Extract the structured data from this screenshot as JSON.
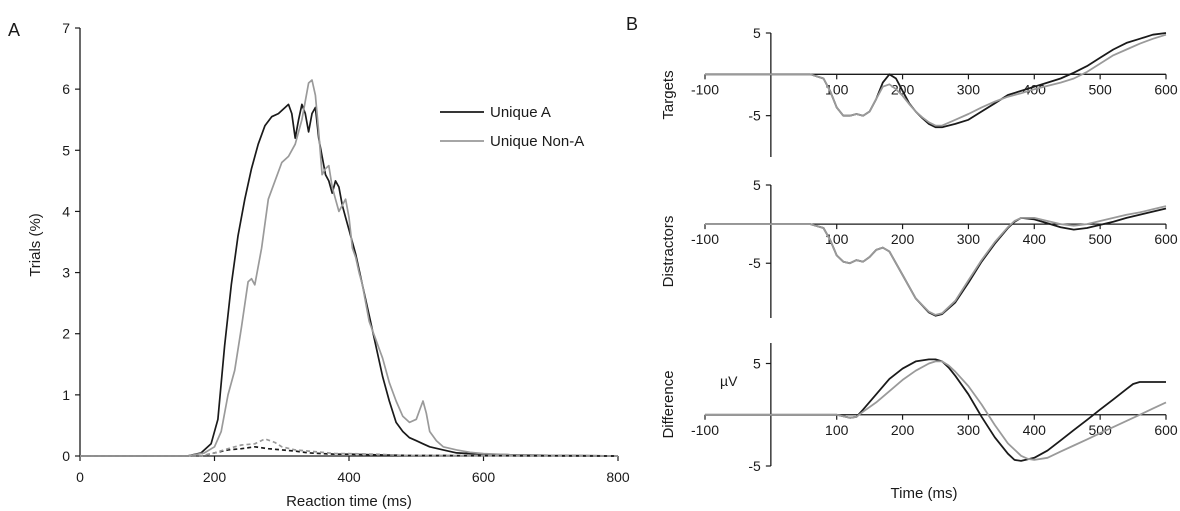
{
  "chart_data": [
    {
      "panel_label": "A",
      "type": "line",
      "xlabel": "Reaction time (ms)",
      "ylabel": "Trials (%)",
      "xlim": [
        0,
        800
      ],
      "ylim": [
        0,
        7
      ],
      "xticks": [
        "0",
        "200",
        "400",
        "600",
        "800"
      ],
      "yticks": [
        "0",
        "1",
        "2",
        "3",
        "4",
        "5",
        "6",
        "7"
      ],
      "legend_position": "top-right",
      "series": [
        {
          "name": "Unique A",
          "color": "#1a1a1a",
          "style": "solid",
          "x": [
            0,
            160,
            180,
            195,
            205,
            215,
            225,
            235,
            245,
            255,
            265,
            275,
            285,
            295,
            300,
            305,
            310,
            315,
            320,
            325,
            330,
            335,
            340,
            345,
            350,
            355,
            360,
            365,
            370,
            375,
            380,
            385,
            390,
            395,
            400,
            410,
            420,
            430,
            440,
            450,
            460,
            470,
            480,
            490,
            500,
            510,
            520,
            540,
            560,
            580,
            600,
            640,
            700,
            800
          ],
          "y": [
            0,
            0,
            0.05,
            0.2,
            0.6,
            1.8,
            2.8,
            3.6,
            4.2,
            4.7,
            5.1,
            5.4,
            5.55,
            5.6,
            5.65,
            5.7,
            5.75,
            5.6,
            5.2,
            5.5,
            5.75,
            5.6,
            5.3,
            5.6,
            5.7,
            5.2,
            4.9,
            4.6,
            4.5,
            4.3,
            4.5,
            4.4,
            4.1,
            3.9,
            3.7,
            3.3,
            2.8,
            2.3,
            1.8,
            1.3,
            0.9,
            0.55,
            0.4,
            0.3,
            0.25,
            0.2,
            0.15,
            0.1,
            0.05,
            0.04,
            0.03,
            0.02,
            0.01,
            0
          ]
        },
        {
          "name": "Unique Non-A",
          "color": "#9a9a9a",
          "style": "solid",
          "x": [
            0,
            160,
            185,
            200,
            210,
            220,
            230,
            240,
            250,
            255,
            260,
            270,
            280,
            290,
            300,
            310,
            320,
            330,
            340,
            345,
            350,
            355,
            360,
            365,
            370,
            375,
            380,
            385,
            390,
            395,
            400,
            405,
            410,
            415,
            420,
            430,
            440,
            450,
            460,
            470,
            480,
            490,
            500,
            505,
            510,
            515,
            520,
            530,
            540,
            560,
            580,
            600,
            640,
            700,
            800
          ],
          "y": [
            0,
            0,
            0.05,
            0.15,
            0.4,
            1.0,
            1.4,
            2.1,
            2.85,
            2.9,
            2.8,
            3.4,
            4.2,
            4.5,
            4.8,
            4.9,
            5.1,
            5.5,
            6.1,
            6.15,
            5.9,
            5.3,
            4.6,
            4.7,
            4.75,
            4.4,
            4.2,
            4.0,
            4.1,
            4.2,
            3.9,
            3.4,
            3.25,
            3.0,
            2.8,
            2.2,
            1.9,
            1.6,
            1.2,
            0.9,
            0.65,
            0.55,
            0.6,
            0.75,
            0.9,
            0.7,
            0.4,
            0.25,
            0.15,
            0.1,
            0.06,
            0.04,
            0.02,
            0.01,
            0
          ]
        },
        {
          "color": "#1a1a1a",
          "style": "dashed",
          "x": [
            0,
            180,
            200,
            220,
            240,
            260,
            280,
            300,
            320,
            340,
            360,
            380,
            400,
            440,
            480,
            800
          ],
          "y": [
            0,
            0,
            0.05,
            0.1,
            0.12,
            0.15,
            0.12,
            0.1,
            0.08,
            0.05,
            0.04,
            0.03,
            0.03,
            0.02,
            0.01,
            0
          ]
        },
        {
          "color": "#9a9a9a",
          "style": "dashed",
          "x": [
            0,
            180,
            200,
            220,
            240,
            260,
            275,
            290,
            300,
            320,
            340,
            360,
            380,
            400,
            440,
            480,
            800
          ],
          "y": [
            0,
            0,
            0.05,
            0.12,
            0.18,
            0.2,
            0.28,
            0.22,
            0.15,
            0.1,
            0.08,
            0.06,
            0.04,
            0.04,
            0.03,
            0.01,
            0
          ]
        }
      ]
    },
    {
      "panel_label": "B",
      "type": "line",
      "xlabel": "Time (ms)",
      "unit_label": "µV",
      "xlim": [
        -100,
        600
      ],
      "xticks": [
        "-100",
        "100",
        "200",
        "300",
        "400",
        "500",
        "600"
      ],
      "subplots": [
        {
          "ylabel": "Targets",
          "ylim": [
            -10,
            5
          ],
          "yticks": [
            "5",
            "-5"
          ],
          "series": [
            {
              "color": "#1a1a1a",
              "x": [
                -100,
                0,
                60,
                80,
                90,
                100,
                110,
                120,
                130,
                140,
                150,
                160,
                170,
                180,
                190,
                200,
                210,
                220,
                230,
                240,
                250,
                260,
                280,
                300,
                320,
                340,
                360,
                380,
                400,
                420,
                440,
                460,
                480,
                500,
                520,
                540,
                560,
                580,
                600
              ],
              "y": [
                0,
                0,
                0,
                -0.5,
                -2,
                -4,
                -5,
                -5,
                -4.8,
                -5,
                -4.5,
                -3,
                -1,
                0,
                -0.5,
                -2,
                -3.5,
                -4.5,
                -5.3,
                -6,
                -6.4,
                -6.4,
                -6,
                -5.5,
                -4.5,
                -3.5,
                -2.5,
                -2,
                -1.5,
                -1,
                -0.5,
                0.2,
                1,
                2,
                3,
                3.8,
                4.3,
                4.8,
                5
              ]
            },
            {
              "color": "#9a9a9a",
              "x": [
                -100,
                0,
                60,
                80,
                90,
                100,
                110,
                120,
                130,
                140,
                150,
                160,
                170,
                180,
                190,
                200,
                210,
                220,
                230,
                240,
                250,
                260,
                280,
                300,
                320,
                340,
                360,
                380,
                400,
                420,
                440,
                460,
                480,
                500,
                520,
                540,
                560,
                580,
                600
              ],
              "y": [
                0,
                0,
                0,
                -0.5,
                -2,
                -4,
                -5,
                -5,
                -4.8,
                -5,
                -4.5,
                -3,
                -1.5,
                -1.2,
                -1.8,
                -2.6,
                -3.6,
                -4.5,
                -5.2,
                -5.8,
                -6.2,
                -6.2,
                -5.5,
                -4.8,
                -4,
                -3.3,
                -2.7,
                -2.3,
                -1.8,
                -1.4,
                -1,
                -0.5,
                0.3,
                1.3,
                2.3,
                3,
                3.7,
                4.3,
                4.8
              ]
            }
          ]
        },
        {
          "ylabel": "Distractors",
          "ylim": [
            -12,
            5
          ],
          "yticks": [
            "5",
            "-5"
          ],
          "series": [
            {
              "color": "#1a1a1a",
              "x": [
                -100,
                0,
                60,
                80,
                90,
                100,
                110,
                120,
                130,
                140,
                150,
                160,
                170,
                180,
                200,
                220,
                240,
                250,
                260,
                280,
                300,
                320,
                340,
                360,
                370,
                380,
                400,
                420,
                440,
                460,
                480,
                500,
                520,
                540,
                560,
                580,
                600
              ],
              "y": [
                0,
                0,
                0,
                -0.5,
                -2,
                -4,
                -4.8,
                -5,
                -4.6,
                -4.8,
                -4.2,
                -3.3,
                -3,
                -3.5,
                -6.5,
                -9.5,
                -11.3,
                -11.7,
                -11.5,
                -10,
                -7.5,
                -4.8,
                -2.5,
                -0.5,
                0.3,
                0.8,
                0.6,
                0.1,
                -0.4,
                -0.7,
                -0.5,
                -0.1,
                0.3,
                0.8,
                1.2,
                1.6,
                2
              ]
            },
            {
              "color": "#9a9a9a",
              "x": [
                -100,
                0,
                60,
                80,
                90,
                100,
                110,
                120,
                130,
                140,
                150,
                160,
                170,
                180,
                200,
                220,
                240,
                250,
                260,
                280,
                300,
                320,
                340,
                360,
                370,
                380,
                400,
                420,
                440,
                460,
                480,
                500,
                520,
                540,
                560,
                580,
                600
              ],
              "y": [
                0,
                0,
                0,
                -0.5,
                -2,
                -4,
                -4.8,
                -5,
                -4.6,
                -4.8,
                -4.2,
                -3.3,
                -3,
                -3.5,
                -6.5,
                -9.5,
                -11.2,
                -11.6,
                -11.4,
                -9.8,
                -7.2,
                -4.6,
                -2.3,
                -0.4,
                0.4,
                0.8,
                0.8,
                0.4,
                0,
                -0.2,
                0,
                0.4,
                0.8,
                1.2,
                1.5,
                1.9,
                2.3
              ]
            }
          ]
        },
        {
          "ylabel": "Difference",
          "ylim": [
            -5,
            7
          ],
          "yticks": [
            "5",
            "-5"
          ],
          "series": [
            {
              "color": "#1a1a1a",
              "x": [
                -100,
                0,
                60,
                100,
                120,
                130,
                140,
                160,
                180,
                200,
                220,
                240,
                250,
                260,
                270,
                280,
                300,
                320,
                340,
                360,
                370,
                380,
                400,
                420,
                440,
                460,
                480,
                500,
                520,
                540,
                550,
                560,
                580,
                600
              ],
              "y": [
                0,
                0,
                0,
                0,
                -0.3,
                -0.2,
                0.5,
                2,
                3.5,
                4.5,
                5.2,
                5.4,
                5.4,
                5.2,
                4.6,
                3.8,
                2,
                -0.2,
                -2.2,
                -3.8,
                -4.4,
                -4.5,
                -4.2,
                -3.5,
                -2.5,
                -1.5,
                -0.5,
                0.5,
                1.5,
                2.5,
                3,
                3.2,
                3.2,
                3.2
              ]
            },
            {
              "color": "#9a9a9a",
              "x": [
                -100,
                0,
                60,
                100,
                120,
                130,
                140,
                160,
                180,
                200,
                220,
                240,
                250,
                260,
                270,
                280,
                300,
                320,
                340,
                360,
                380,
                390,
                400,
                420,
                440,
                460,
                480,
                500,
                520,
                540,
                560,
                580,
                600
              ],
              "y": [
                0,
                0,
                0,
                0,
                -0.3,
                -0.2,
                0.3,
                1.2,
                2.3,
                3.4,
                4.3,
                5,
                5.2,
                5.2,
                4.8,
                4.2,
                2.8,
                1,
                -1,
                -2.8,
                -4,
                -4.3,
                -4.4,
                -4.2,
                -3.6,
                -3,
                -2.4,
                -1.8,
                -1.2,
                -0.6,
                0,
                0.6,
                1.2
              ]
            }
          ]
        }
      ]
    }
  ]
}
